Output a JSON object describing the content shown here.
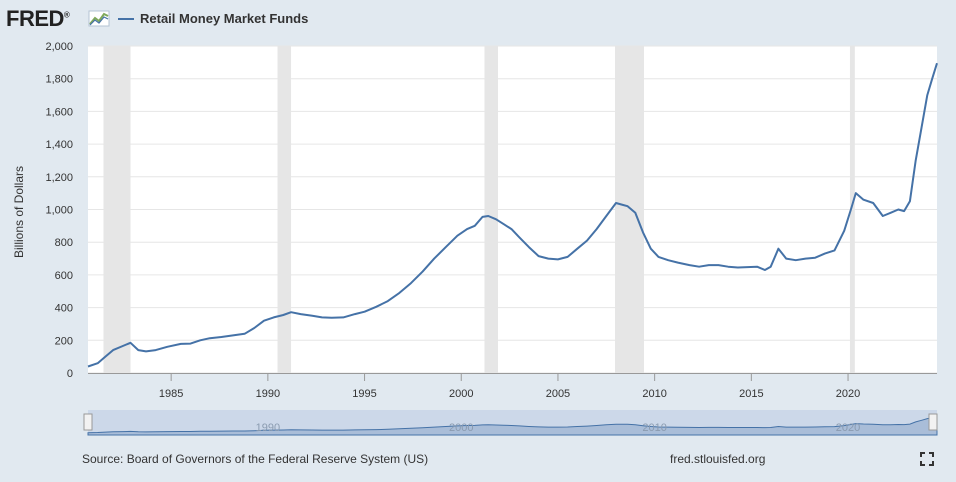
{
  "header": {
    "logo_text": "FRED",
    "logo_mark": "®",
    "series_legend": "Retail Money Market Funds"
  },
  "footer": {
    "source": "Source: Board of Governors of the Federal Reserve System (US)",
    "url": "fred.stlouisfed.org"
  },
  "icons": {
    "logo_chart": "chart-trend-icon",
    "fullscreen": "fullscreen-icon"
  },
  "colors": {
    "series_line": "#4572a7",
    "recession_band": "#e6e6e6",
    "background": "#e1e9f0",
    "plot_bg": "#ffffff"
  },
  "chart_data": {
    "type": "line",
    "title": "",
    "xlabel": "",
    "ylabel": "Billions of Dollars",
    "ylim": [
      0,
      2000
    ],
    "xlim": [
      1980.7,
      2024.6
    ],
    "y_ticks": [
      "0",
      "200",
      "400",
      "600",
      "800",
      "1,000",
      "1,200",
      "1,400",
      "1,600",
      "1,800",
      "2,000"
    ],
    "x_ticks": [
      "1985",
      "1990",
      "1995",
      "2000",
      "2005",
      "2010",
      "2015",
      "2020"
    ],
    "navigator_ticks": [
      "1990",
      "2000",
      "2010",
      "2020"
    ],
    "grid": true,
    "legend_position": "top-left",
    "recessions": [
      [
        1981.5,
        1982.9
      ],
      [
        1990.5,
        1991.2
      ],
      [
        2001.2,
        2001.9
      ],
      [
        2007.95,
        2009.45
      ],
      [
        2020.1,
        2020.35
      ]
    ],
    "series": [
      {
        "name": "Retail Money Market Funds",
        "x": [
          1980.7,
          1981.2,
          1981.6,
          1982.0,
          1982.5,
          1982.9,
          1983.3,
          1983.7,
          1984.2,
          1984.8,
          1985.5,
          1986.0,
          1986.5,
          1987.0,
          1987.6,
          1988.2,
          1988.8,
          1989.3,
          1989.8,
          1990.3,
          1990.8,
          1991.2,
          1991.7,
          1992.3,
          1992.8,
          1993.3,
          1993.9,
          1994.5,
          1995.0,
          1995.6,
          1996.2,
          1996.8,
          1997.4,
          1998.0,
          1998.6,
          1999.2,
          1999.8,
          2000.3,
          2000.7,
          2001.1,
          2001.4,
          2001.8,
          2002.2,
          2002.6,
          2003.0,
          2003.5,
          2004.0,
          2004.5,
          2005.0,
          2005.5,
          2006.0,
          2006.5,
          2007.0,
          2007.5,
          2008.0,
          2008.3,
          2008.6,
          2009.0,
          2009.4,
          2009.8,
          2010.2,
          2010.7,
          2011.2,
          2011.8,
          2012.3,
          2012.8,
          2013.3,
          2013.8,
          2014.3,
          2014.8,
          2015.3,
          2015.7,
          2016.0,
          2016.4,
          2016.8,
          2017.3,
          2017.8,
          2018.3,
          2018.8,
          2019.3,
          2019.8,
          2020.15,
          2020.4,
          2020.8,
          2021.3,
          2021.8,
          2022.2,
          2022.6,
          2022.9,
          2023.2,
          2023.5,
          2023.8,
          2024.1,
          2024.35,
          2024.6
        ],
        "values": [
          40,
          60,
          100,
          140,
          165,
          185,
          140,
          132,
          140,
          160,
          178,
          180,
          200,
          213,
          220,
          230,
          240,
          275,
          320,
          340,
          355,
          372,
          360,
          350,
          340,
          338,
          340,
          360,
          375,
          405,
          440,
          490,
          550,
          620,
          700,
          770,
          840,
          880,
          900,
          955,
          960,
          940,
          910,
          880,
          830,
          770,
          715,
          700,
          695,
          710,
          760,
          810,
          880,
          960,
          1040,
          1030,
          1020,
          980,
          860,
          760,
          710,
          690,
          675,
          660,
          650,
          660,
          660,
          650,
          645,
          648,
          650,
          630,
          650,
          760,
          700,
          690,
          700,
          705,
          730,
          750,
          870,
          1000,
          1100,
          1060,
          1040,
          960,
          980,
          1000,
          990,
          1050,
          1300,
          1500,
          1700,
          1800,
          1895
        ]
      }
    ]
  }
}
